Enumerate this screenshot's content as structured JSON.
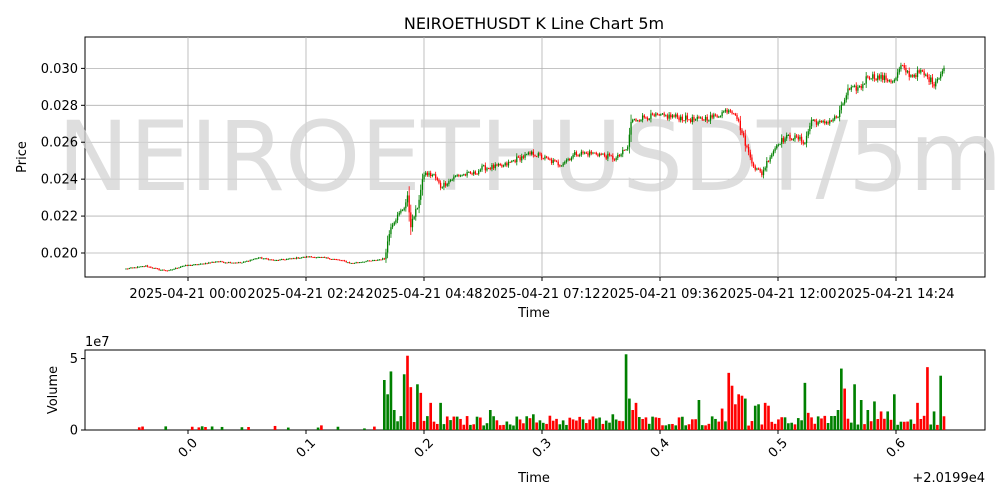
{
  "watermark": "NEIROETHUSDT/5m",
  "chart_data": [
    {
      "type": "candlestick",
      "title": "NEIROETHUSDT K Line Chart 5m",
      "xlabel": "Time",
      "ylabel": "Price",
      "x_tick_labels": [
        "2025-04-21 00:00",
        "2025-04-21 02:24",
        "2025-04-21 04:48",
        "2025-04-21 07:12",
        "2025-04-21 09:36",
        "2025-04-21 12:00",
        "2025-04-21 14:24"
      ],
      "y_ticks": [
        0.02,
        0.022,
        0.024,
        0.026,
        0.028,
        0.03
      ],
      "y_tick_labels": [
        "0.020",
        "0.022",
        "0.024",
        "0.026",
        "0.028",
        "0.030"
      ],
      "ylim": [
        0.0187,
        0.0317
      ],
      "grid": true,
      "colors": {
        "up": "#008000",
        "down": "#ff0000"
      },
      "price_path": [
        [
          0,
          0.01915
        ],
        [
          8,
          0.01925
        ],
        [
          12,
          0.0193
        ],
        [
          20,
          0.0191
        ],
        [
          26,
          0.01905
        ],
        [
          34,
          0.0193
        ],
        [
          45,
          0.0194
        ],
        [
          55,
          0.01955
        ],
        [
          60,
          0.0195
        ],
        [
          70,
          0.01948
        ],
        [
          80,
          0.01975
        ],
        [
          90,
          0.0196
        ],
        [
          100,
          0.0197
        ],
        [
          110,
          0.0198
        ],
        [
          120,
          0.01975
        ],
        [
          130,
          0.0196
        ],
        [
          136,
          0.01945
        ],
        [
          144,
          0.01955
        ],
        [
          150,
          0.0196
        ],
        [
          156,
          0.0197
        ],
        [
          158,
          0.0206
        ],
        [
          160,
          0.0215
        ],
        [
          164,
          0.022
        ],
        [
          168,
          0.0225
        ],
        [
          170,
          0.023
        ],
        [
          172,
          0.0215
        ],
        [
          176,
          0.0225
        ],
        [
          180,
          0.0243
        ],
        [
          186,
          0.0242
        ],
        [
          190,
          0.0236
        ],
        [
          200,
          0.0242
        ],
        [
          210,
          0.0243
        ],
        [
          215,
          0.0246
        ],
        [
          228,
          0.0247
        ],
        [
          236,
          0.0251
        ],
        [
          246,
          0.0254
        ],
        [
          256,
          0.025
        ],
        [
          262,
          0.0248
        ],
        [
          272,
          0.0254
        ],
        [
          284,
          0.0254
        ],
        [
          296,
          0.0251
        ],
        [
          303,
          0.0257
        ],
        [
          305,
          0.0271
        ],
        [
          310,
          0.0273
        ],
        [
          316,
          0.0274
        ],
        [
          330,
          0.0274
        ],
        [
          344,
          0.0272
        ],
        [
          356,
          0.0274
        ],
        [
          364,
          0.0278
        ],
        [
          368,
          0.0276
        ],
        [
          372,
          0.0265
        ],
        [
          376,
          0.0254
        ],
        [
          380,
          0.0246
        ],
        [
          384,
          0.0243
        ],
        [
          388,
          0.0251
        ],
        [
          394,
          0.026
        ],
        [
          400,
          0.0263
        ],
        [
          406,
          0.0262
        ],
        [
          410,
          0.026
        ],
        [
          414,
          0.0272
        ],
        [
          420,
          0.027
        ],
        [
          426,
          0.0272
        ],
        [
          430,
          0.0274
        ],
        [
          436,
          0.0288
        ],
        [
          444,
          0.029
        ],
        [
          448,
          0.0296
        ],
        [
          456,
          0.0295
        ],
        [
          464,
          0.0293
        ],
        [
          468,
          0.0301
        ],
        [
          474,
          0.0296
        ],
        [
          480,
          0.0298
        ],
        [
          488,
          0.0292
        ],
        [
          494,
          0.03
        ]
      ]
    },
    {
      "type": "bar",
      "xlabel": "Time",
      "ylabel": "Volume",
      "multiplier_label": "1e7",
      "offset_label": "+2.0199e4",
      "x_ticks": [
        0.0,
        0.1,
        0.2,
        0.3,
        0.4,
        0.5,
        0.6
      ],
      "x_tick_labels": [
        "0.0",
        "0.1",
        "0.2",
        "0.3",
        "0.4",
        "0.5",
        "0.6"
      ],
      "y_ticks": [
        0,
        5
      ],
      "y_tick_labels": [
        "0",
        "5"
      ],
      "ylim": [
        0,
        5.6
      ],
      "volume_spikes": [
        [
          156,
          3.5,
          "up"
        ],
        [
          158,
          2.5,
          "up"
        ],
        [
          160,
          4.1,
          "up"
        ],
        [
          162,
          1.4,
          "up"
        ],
        [
          168,
          3.9,
          "up"
        ],
        [
          170,
          5.2,
          "down"
        ],
        [
          172,
          3.0,
          "down"
        ],
        [
          176,
          3.2,
          "up"
        ],
        [
          178,
          2.6,
          "down"
        ],
        [
          184,
          1.9,
          "down"
        ],
        [
          190,
          1.9,
          "up"
        ],
        [
          213,
          1.3,
          "down"
        ],
        [
          220,
          1.4,
          "up"
        ],
        [
          246,
          1.1,
          "up"
        ],
        [
          256,
          1.0,
          "down"
        ],
        [
          294,
          1.1,
          "up"
        ],
        [
          302,
          5.3,
          "up"
        ],
        [
          304,
          2.2,
          "up"
        ],
        [
          306,
          1.4,
          "down"
        ],
        [
          308,
          1.9,
          "down"
        ],
        [
          346,
          2.1,
          "up"
        ],
        [
          360,
          1.5,
          "down"
        ],
        [
          364,
          4.0,
          "down"
        ],
        [
          366,
          3.1,
          "down"
        ],
        [
          368,
          1.8,
          "down"
        ],
        [
          370,
          2.5,
          "down"
        ],
        [
          372,
          2.4,
          "down"
        ],
        [
          374,
          2.2,
          "up"
        ],
        [
          380,
          1.7,
          "up"
        ],
        [
          382,
          1.8,
          "up"
        ],
        [
          386,
          1.9,
          "down"
        ],
        [
          388,
          1.7,
          "down"
        ],
        [
          410,
          3.3,
          "up"
        ],
        [
          412,
          1.2,
          "down"
        ],
        [
          430,
          1.4,
          "up"
        ],
        [
          432,
          4.3,
          "up"
        ],
        [
          434,
          2.9,
          "down"
        ],
        [
          440,
          3.2,
          "up"
        ],
        [
          444,
          2.1,
          "up"
        ],
        [
          448,
          1.4,
          "up"
        ],
        [
          452,
          2.0,
          "up"
        ],
        [
          456,
          1.3,
          "down"
        ],
        [
          460,
          1.3,
          "up"
        ],
        [
          464,
          2.5,
          "up"
        ],
        [
          478,
          1.9,
          "down"
        ],
        [
          484,
          4.4,
          "down"
        ],
        [
          488,
          1.3,
          "up"
        ],
        [
          492,
          3.8,
          "up"
        ]
      ]
    }
  ]
}
